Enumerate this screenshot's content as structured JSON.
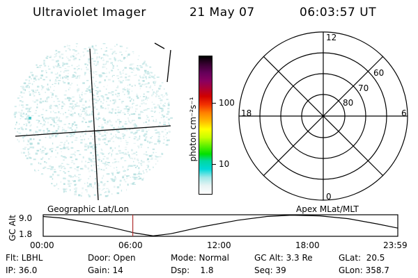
{
  "header": {
    "instrument": "Ultraviolet Imager",
    "date": "21 May 07",
    "time": "06:03:57 UT"
  },
  "colorbar": {
    "label": "photon cm⁻²s⁻¹",
    "ticks": [
      "100",
      "10"
    ],
    "colors": [
      "#000000",
      "#3a0033",
      "#66005a",
      "#8a0060",
      "#b00030",
      "#d00000",
      "#f23000",
      "#ff8000",
      "#ffb800",
      "#ffff00",
      "#c8ff00",
      "#60f000",
      "#00e000",
      "#00d8a0",
      "#00d8d8",
      "#a0e8e8",
      "#e8f4f4",
      "#ffffff"
    ]
  },
  "polar_plot": {
    "mlt_labels": [
      "12",
      "18",
      "6",
      "0"
    ],
    "lat_labels": [
      "60",
      "70",
      "80"
    ]
  },
  "timeline": {
    "left_title": "Geographic Lat/Lon",
    "right_title": "Apex MLat/MLT",
    "ylabel": "GC Alt",
    "ytick_top": "9.0",
    "ytick_bottom": "1.8",
    "xticks": [
      "00:00",
      "06:00",
      "12:00",
      "18:00",
      "23:59"
    ],
    "marker_time": "06:03:57",
    "marker_color": "#b03030"
  },
  "info": {
    "flt": "Flt: LBHL",
    "ip": "IP: 36.0",
    "door": "Door: Open",
    "gain": "Gain: 14",
    "mode": "Mode: Normal",
    "dsp": "Dsp:    1.8",
    "gcalt": "GC Alt: 3.3 Re",
    "seq": "Seq: 39",
    "glat": "GLat:  20.5",
    "glon": "GLon: 358.7"
  }
}
